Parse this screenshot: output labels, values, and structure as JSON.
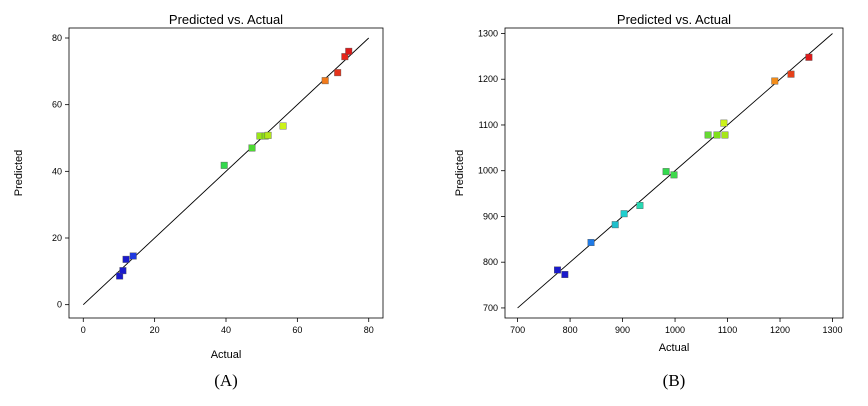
{
  "chart_data": [
    {
      "type": "scatter",
      "panel_label": "(A)",
      "title": "Predicted vs. Actual",
      "xlabel": "Actual",
      "ylabel": "Predicted",
      "xlim": [
        -4,
        84
      ],
      "ylim": [
        -4,
        83
      ],
      "xticks": [
        0,
        20,
        40,
        60,
        80
      ],
      "yticks": [
        0,
        20,
        40,
        60,
        80
      ],
      "reference_line": {
        "from": [
          0,
          0
        ],
        "to": [
          80,
          80
        ]
      },
      "points": [
        {
          "x": 10.2,
          "y": 8.6,
          "color": "#1a1acc"
        },
        {
          "x": 11.1,
          "y": 10.2,
          "color": "#1a1acc"
        },
        {
          "x": 12.0,
          "y": 13.6,
          "color": "#1a1acc"
        },
        {
          "x": 14.0,
          "y": 14.6,
          "color": "#1f3ae0"
        },
        {
          "x": 39.5,
          "y": 41.8,
          "color": "#33d94d"
        },
        {
          "x": 47.3,
          "y": 47.0,
          "color": "#4dd933"
        },
        {
          "x": 49.5,
          "y": 50.6,
          "color": "#99e61a"
        },
        {
          "x": 51.0,
          "y": 50.6,
          "color": "#8ce01a"
        },
        {
          "x": 51.8,
          "y": 50.8,
          "color": "#b3e61a"
        },
        {
          "x": 56.0,
          "y": 53.6,
          "color": "#ccf21a"
        },
        {
          "x": 67.8,
          "y": 67.2,
          "color": "#f27a1a"
        },
        {
          "x": 71.3,
          "y": 69.6,
          "color": "#e6331a"
        },
        {
          "x": 73.3,
          "y": 74.4,
          "color": "#e6261a"
        },
        {
          "x": 74.4,
          "y": 76.0,
          "color": "#dd1a1a"
        }
      ]
    },
    {
      "type": "scatter",
      "panel_label": "(B)",
      "title": "Predicted vs. Actual",
      "xlabel": "Actual",
      "ylabel": "Predicted",
      "xlim": [
        676,
        1320
      ],
      "ylim": [
        678,
        1312
      ],
      "xticks": [
        700,
        800,
        900,
        1000,
        1100,
        1200,
        1300
      ],
      "yticks": [
        700,
        800,
        900,
        1000,
        1100,
        1200,
        1300
      ],
      "reference_line": {
        "from": [
          700,
          700
        ],
        "to": [
          1300,
          1300
        ]
      },
      "points": [
        {
          "x": 776,
          "y": 783,
          "color": "#1a1acc"
        },
        {
          "x": 790,
          "y": 773,
          "color": "#1a1acc"
        },
        {
          "x": 840,
          "y": 843,
          "color": "#1f7ae6"
        },
        {
          "x": 886,
          "y": 882,
          "color": "#1fbfcc"
        },
        {
          "x": 903,
          "y": 906,
          "color": "#1fcfcf"
        },
        {
          "x": 933,
          "y": 924,
          "color": "#26d9b3"
        },
        {
          "x": 983,
          "y": 998,
          "color": "#33d94d"
        },
        {
          "x": 998,
          "y": 991,
          "color": "#40d94d"
        },
        {
          "x": 1063,
          "y": 1078,
          "color": "#66d933"
        },
        {
          "x": 1080,
          "y": 1078,
          "color": "#80e01a"
        },
        {
          "x": 1093,
          "y": 1104,
          "color": "#ccf21a"
        },
        {
          "x": 1095,
          "y": 1078,
          "color": "#a6e61a"
        },
        {
          "x": 1190,
          "y": 1196,
          "color": "#f28c1a"
        },
        {
          "x": 1221,
          "y": 1211,
          "color": "#e6401a"
        },
        {
          "x": 1255,
          "y": 1248,
          "color": "#dd1a1a"
        }
      ]
    }
  ]
}
